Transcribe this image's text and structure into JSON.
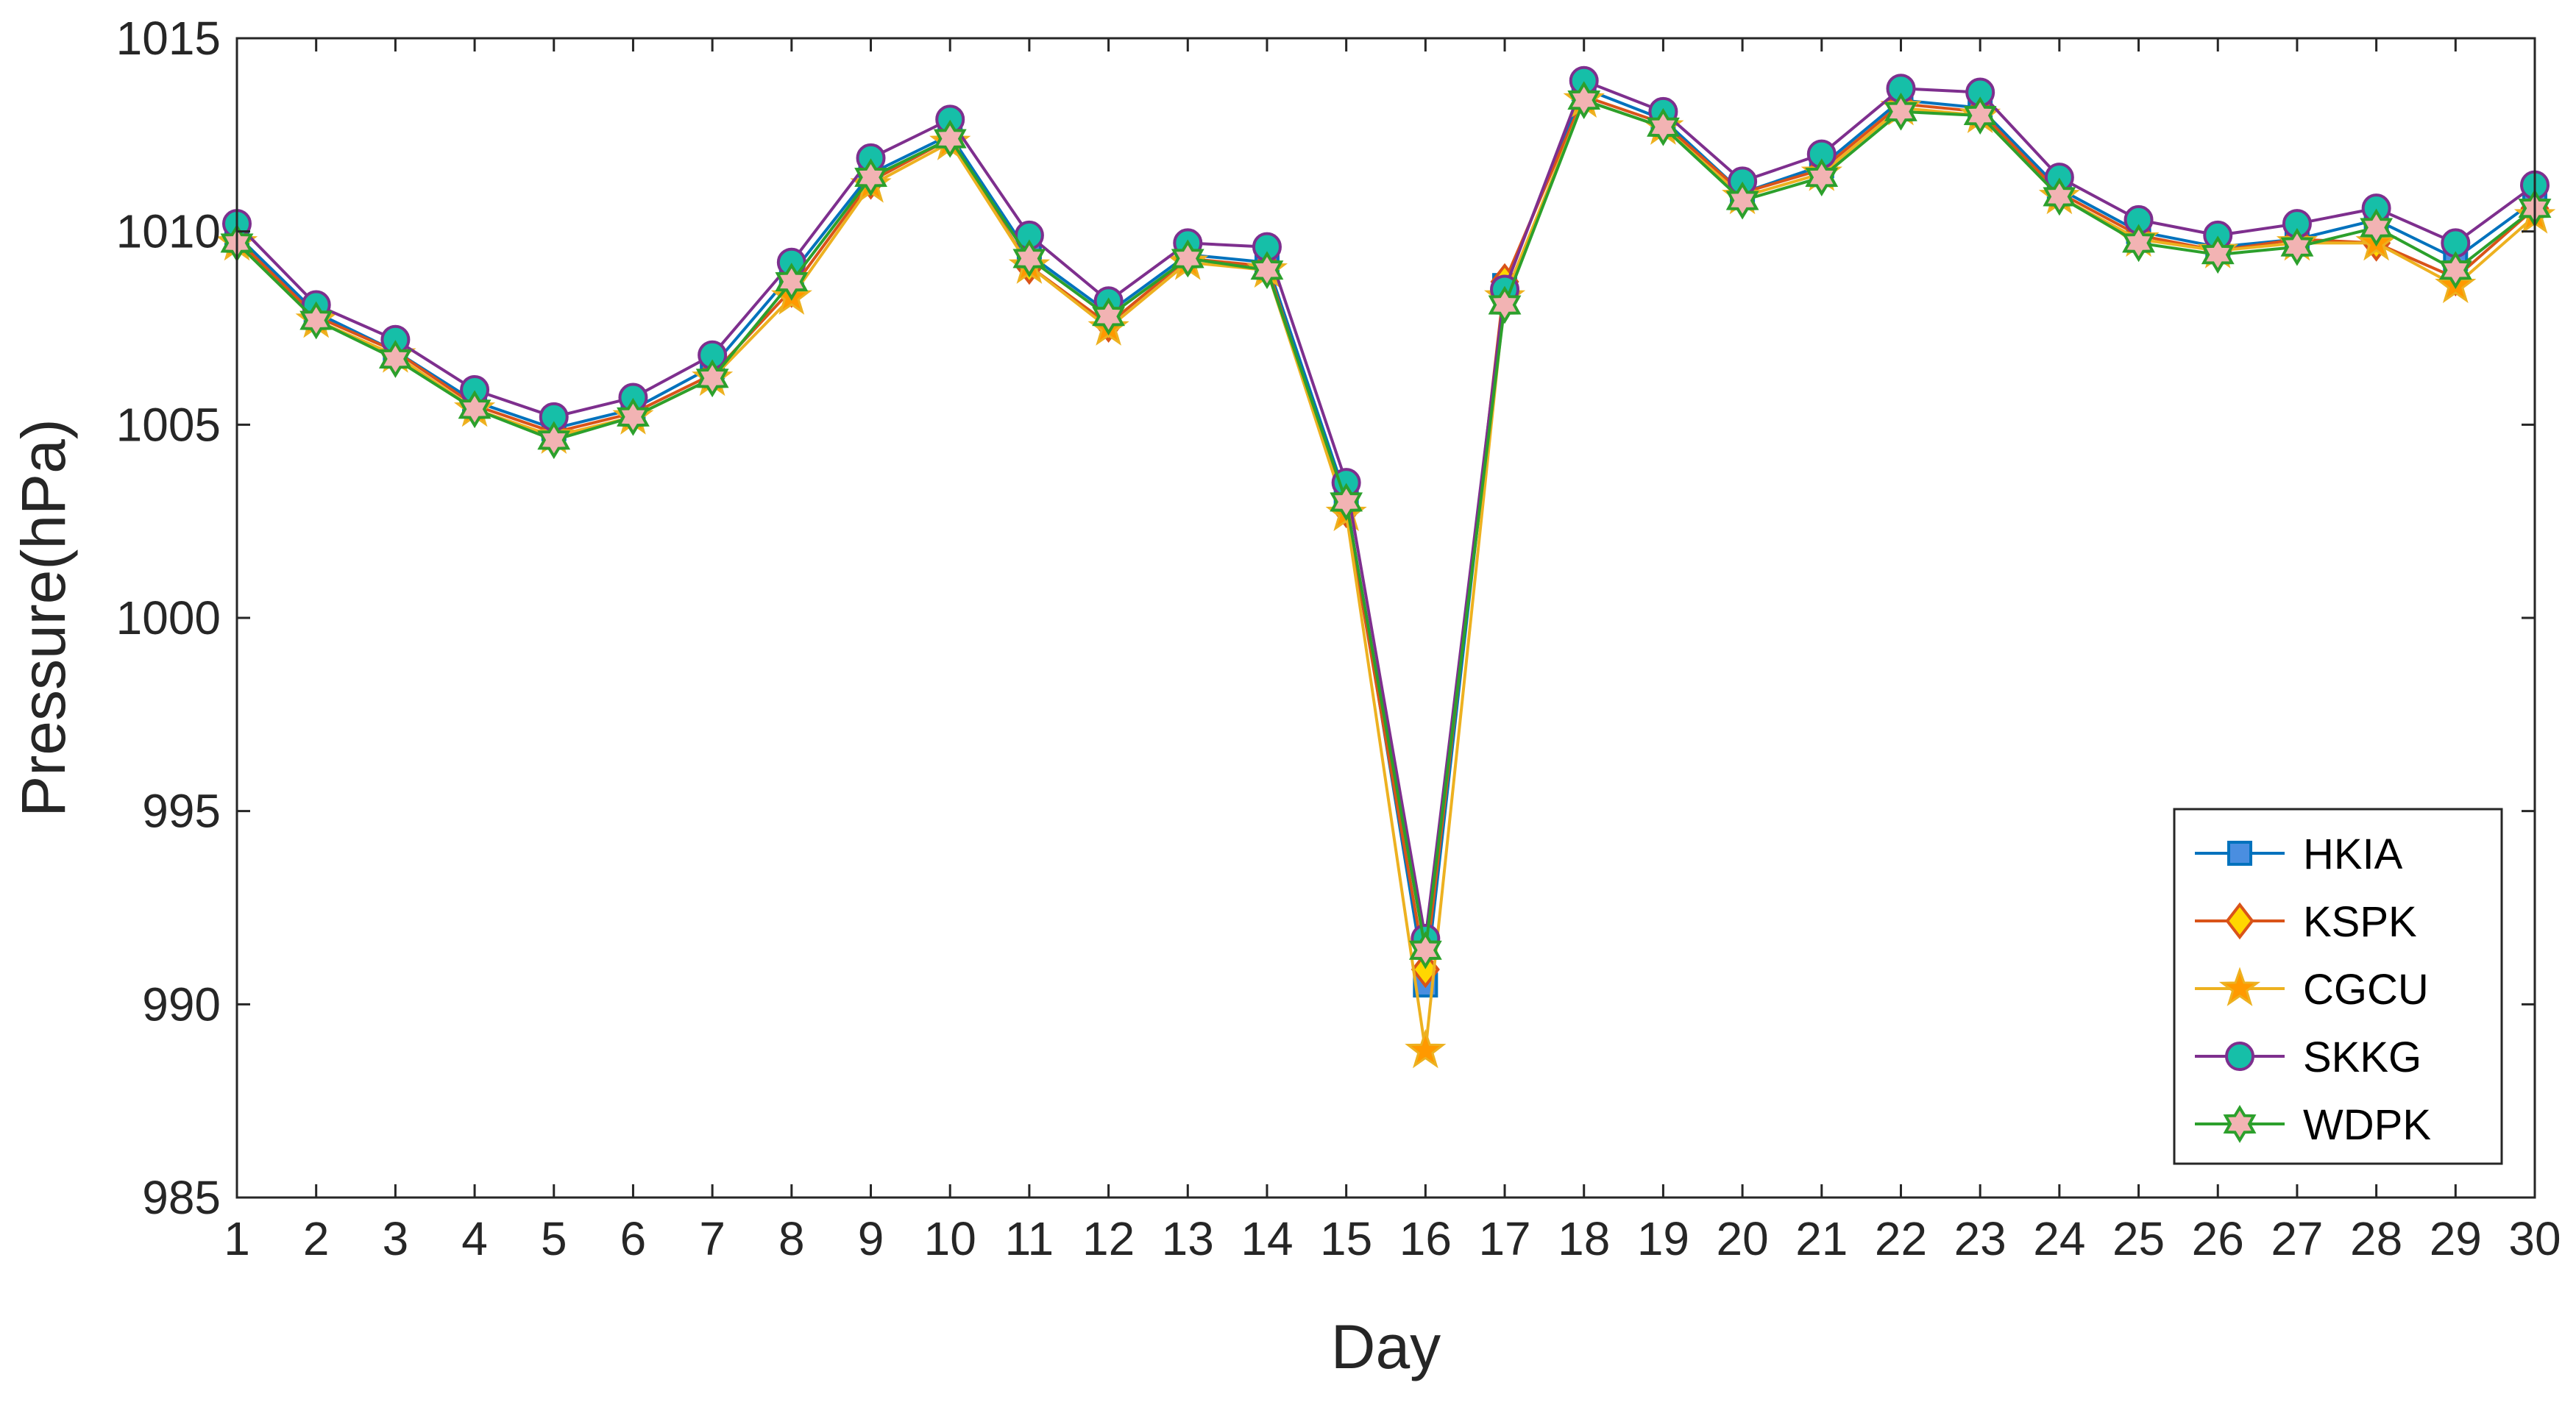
{
  "chart_data": {
    "type": "line",
    "title": "",
    "xlabel": "Day",
    "ylabel": "Pressure(hPa)",
    "xlim": [
      1,
      30
    ],
    "ylim": [
      985,
      1015
    ],
    "xticks": [
      1,
      2,
      3,
      4,
      5,
      6,
      7,
      8,
      9,
      10,
      11,
      12,
      13,
      14,
      15,
      16,
      17,
      18,
      19,
      20,
      21,
      22,
      23,
      24,
      25,
      26,
      27,
      28,
      29,
      30
    ],
    "yticks": [
      985,
      990,
      995,
      1000,
      1005,
      1010,
      1015
    ],
    "grid": false,
    "legend_position": "bottom-right",
    "x": [
      1,
      2,
      3,
      4,
      5,
      6,
      7,
      8,
      9,
      10,
      11,
      12,
      13,
      14,
      15,
      16,
      17,
      18,
      19,
      20,
      21,
      22,
      23,
      24,
      25,
      26,
      27,
      28,
      29,
      30
    ],
    "series": [
      {
        "name": "HKIA",
        "color": "#0072BD",
        "fill": "#4A8EE0",
        "marker": "square",
        "values": [
          1009.9,
          1007.9,
          1006.9,
          1005.6,
          1004.9,
          1005.4,
          1006.5,
          1008.9,
          1011.5,
          1012.5,
          1009.4,
          1007.9,
          1009.4,
          1009.2,
          1003.1,
          990.5,
          1008.6,
          1013.7,
          1012.9,
          1011.0,
          1011.7,
          1013.4,
          1013.2,
          1011.1,
          1010.0,
          1009.6,
          1009.8,
          1010.3,
          1009.3,
          1010.8
        ]
      },
      {
        "name": "KSPK",
        "color": "#D95319",
        "fill": "#FFD700",
        "marker": "diamond",
        "values": [
          1009.8,
          1007.8,
          1006.9,
          1005.5,
          1004.8,
          1005.3,
          1006.3,
          1008.5,
          1011.3,
          1012.4,
          1009.1,
          1007.6,
          1009.3,
          1009.1,
          1002.8,
          990.9,
          1008.7,
          1013.5,
          1012.8,
          1011.0,
          1011.6,
          1013.3,
          1013.1,
          1011.0,
          1009.9,
          1009.5,
          1009.8,
          1009.7,
          1008.8,
          1010.6
        ]
      },
      {
        "name": "CGCU",
        "color": "#EDB120",
        "fill": "#FF9900",
        "marker": "star",
        "values": [
          1009.7,
          1007.7,
          1006.8,
          1005.4,
          1004.7,
          1005.2,
          1006.2,
          1008.3,
          1011.2,
          1012.3,
          1009.1,
          1007.5,
          1009.2,
          1009.0,
          1002.7,
          988.8,
          1008.3,
          1013.4,
          1012.7,
          1010.9,
          1011.5,
          1013.2,
          1013.0,
          1010.9,
          1009.8,
          1009.5,
          1009.7,
          1009.7,
          1008.6,
          1010.4
        ]
      },
      {
        "name": "SKKG",
        "color": "#7E2F8E",
        "fill": "#16BFA8",
        "marker": "circle",
        "values": [
          1010.2,
          1008.1,
          1007.2,
          1005.9,
          1005.2,
          1005.7,
          1006.8,
          1009.2,
          1011.9,
          1012.9,
          1009.9,
          1008.2,
          1009.7,
          1009.6,
          1003.5,
          991.7,
          1008.5,
          1013.9,
          1013.1,
          1011.3,
          1012.0,
          1013.7,
          1013.6,
          1011.4,
          1010.3,
          1009.9,
          1010.2,
          1010.6,
          1009.7,
          1011.2
        ]
      },
      {
        "name": "WDPK",
        "color": "#2CA02C",
        "fill": "#F2B3B3",
        "marker": "hexagram",
        "values": [
          1009.7,
          1007.7,
          1006.7,
          1005.4,
          1004.6,
          1005.2,
          1006.2,
          1008.7,
          1011.4,
          1012.4,
          1009.3,
          1007.8,
          1009.3,
          1009.0,
          1003.0,
          991.4,
          1008.1,
          1013.4,
          1012.7,
          1010.8,
          1011.4,
          1013.1,
          1013.0,
          1010.9,
          1009.7,
          1009.4,
          1009.6,
          1010.1,
          1009.0,
          1010.6
        ]
      }
    ]
  }
}
